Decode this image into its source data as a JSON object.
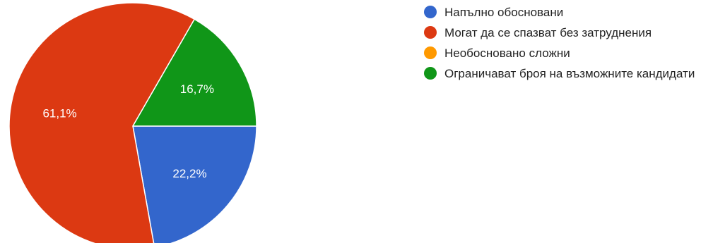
{
  "chart_data": {
    "type": "pie",
    "categories": [
      "Напълно обосновани",
      "Могат да се спазват без затруднения",
      "Необосновано сложни",
      "Ограничават броя на възможните кандидати"
    ],
    "values": [
      22.2,
      61.1,
      0,
      16.7
    ],
    "data_labels": [
      "22,2%",
      "61,1%",
      "",
      "16,7%"
    ],
    "colors": [
      "#3366cc",
      "#dc3912",
      "#ff9900",
      "#109618"
    ],
    "legend_position": "right",
    "title": ""
  },
  "legend": {
    "items": [
      {
        "label": "Напълно обосновани",
        "color": "#3366cc"
      },
      {
        "label": "Могат да се спазват без затруднения",
        "color": "#dc3912"
      },
      {
        "label": "Необосновано сложни",
        "color": "#ff9900"
      },
      {
        "label": "Ограничават броя на възможните кандидати",
        "color": "#109618"
      }
    ]
  }
}
